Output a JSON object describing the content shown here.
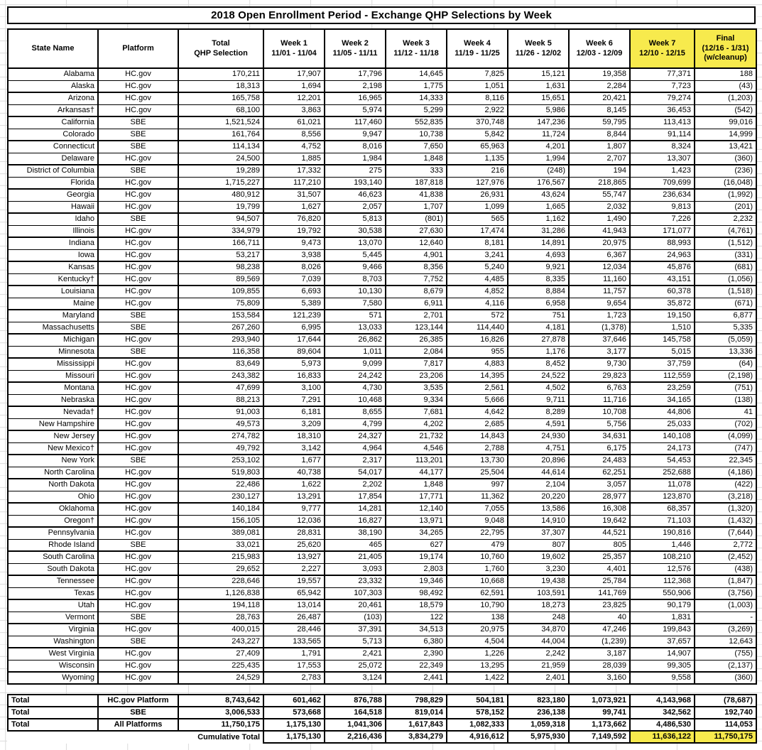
{
  "title": "2018 Open Enrollment Period - Exchange QHP Selections by Week",
  "colors": {
    "highlight_yellow": "#F7EA4D",
    "gridline": "#DCDCDC",
    "border": "#000000",
    "background": "#FFFFFF"
  },
  "columns": [
    {
      "label": "State Name",
      "sub": "",
      "highlight": false
    },
    {
      "label": "Platform",
      "sub": "",
      "highlight": false
    },
    {
      "label": "Total",
      "sub": "QHP Selection",
      "highlight": false
    },
    {
      "label": "Week 1",
      "sub": "11/01 - 11/04",
      "highlight": false
    },
    {
      "label": "Week 2",
      "sub": "11/05 - 11/11",
      "highlight": false
    },
    {
      "label": "Week 3",
      "sub": "11/12 - 11/18",
      "highlight": false
    },
    {
      "label": "Week 4",
      "sub": "11/19 - 11/25",
      "highlight": false
    },
    {
      "label": "Week 5",
      "sub": "11/26 - 12/02",
      "highlight": false
    },
    {
      "label": "Week 6",
      "sub": "12/03 - 12/09",
      "highlight": false
    },
    {
      "label": "Week 7",
      "sub": "12/10 - 12/15",
      "highlight": true
    },
    {
      "label": "Final",
      "sub": "(12/16 - 1/31)",
      "sub2": "(w/cleanup)",
      "highlight": true
    }
  ],
  "rows": [
    [
      "Alabama",
      "HC.gov",
      "170,211",
      "17,907",
      "17,796",
      "14,645",
      "7,825",
      "15,121",
      "19,358",
      "77,371",
      "188"
    ],
    [
      "Alaska",
      "HC.gov",
      "18,313",
      "1,694",
      "2,198",
      "1,775",
      "1,051",
      "1,631",
      "2,284",
      "7,723",
      "(43)"
    ],
    [
      "Arizona",
      "HC.gov",
      "165,758",
      "12,201",
      "16,965",
      "14,333",
      "8,116",
      "15,651",
      "20,421",
      "79,274",
      "(1,203)"
    ],
    [
      "Arkansas†",
      "HC.gov",
      "68,100",
      "3,863",
      "5,974",
      "5,299",
      "2,922",
      "5,986",
      "8,145",
      "36,453",
      "(542)"
    ],
    [
      "California",
      "SBE",
      "1,521,524",
      "61,021",
      "117,460",
      "552,835",
      "370,748",
      "147,236",
      "59,795",
      "113,413",
      "99,016"
    ],
    [
      "Colorado",
      "SBE",
      "161,764",
      "8,556",
      "9,947",
      "10,738",
      "5,842",
      "11,724",
      "8,844",
      "91,114",
      "14,999"
    ],
    [
      "Connecticut",
      "SBE",
      "114,134",
      "4,752",
      "8,016",
      "7,650",
      "65,963",
      "4,201",
      "1,807",
      "8,324",
      "13,421"
    ],
    [
      "Delaware",
      "HC.gov",
      "24,500",
      "1,885",
      "1,984",
      "1,848",
      "1,135",
      "1,994",
      "2,707",
      "13,307",
      "(360)"
    ],
    [
      "District of Columbia",
      "SBE",
      "19,289",
      "17,332",
      "275",
      "333",
      "216",
      "(248)",
      "194",
      "1,423",
      "(236)"
    ],
    [
      "Florida",
      "HC.gov",
      "1,715,227",
      "117,210",
      "193,140",
      "187,818",
      "127,976",
      "176,567",
      "218,865",
      "709,699",
      "(16,048)"
    ],
    [
      "Georgia",
      "HC.gov",
      "480,912",
      "31,507",
      "46,623",
      "41,838",
      "26,931",
      "43,624",
      "55,747",
      "236,634",
      "(1,992)"
    ],
    [
      "Hawaii",
      "HC.gov",
      "19,799",
      "1,627",
      "2,057",
      "1,707",
      "1,099",
      "1,665",
      "2,032",
      "9,813",
      "(201)"
    ],
    [
      "Idaho",
      "SBE",
      "94,507",
      "76,820",
      "5,813",
      "(801)",
      "565",
      "1,162",
      "1,490",
      "7,226",
      "2,232"
    ],
    [
      "Illinois",
      "HC.gov",
      "334,979",
      "19,792",
      "30,538",
      "27,630",
      "17,474",
      "31,286",
      "41,943",
      "171,077",
      "(4,761)"
    ],
    [
      "Indiana",
      "HC.gov",
      "166,711",
      "9,473",
      "13,070",
      "12,640",
      "8,181",
      "14,891",
      "20,975",
      "88,993",
      "(1,512)"
    ],
    [
      "Iowa",
      "HC.gov",
      "53,217",
      "3,938",
      "5,445",
      "4,901",
      "3,241",
      "4,693",
      "6,367",
      "24,963",
      "(331)"
    ],
    [
      "Kansas",
      "HC.gov",
      "98,238",
      "8,026",
      "9,466",
      "8,356",
      "5,240",
      "9,921",
      "12,034",
      "45,876",
      "(681)"
    ],
    [
      "Kentucky†",
      "HC.gov",
      "89,569",
      "7,039",
      "8,703",
      "7,752",
      "4,485",
      "8,335",
      "11,160",
      "43,151",
      "(1,056)"
    ],
    [
      "Louisiana",
      "HC.gov",
      "109,855",
      "6,693",
      "10,130",
      "8,679",
      "4,852",
      "8,884",
      "11,757",
      "60,378",
      "(1,518)"
    ],
    [
      "Maine",
      "HC.gov",
      "75,809",
      "5,389",
      "7,580",
      "6,911",
      "4,116",
      "6,958",
      "9,654",
      "35,872",
      "(671)"
    ],
    [
      "Maryland",
      "SBE",
      "153,584",
      "121,239",
      "571",
      "2,701",
      "572",
      "751",
      "1,723",
      "19,150",
      "6,877"
    ],
    [
      "Massachusetts",
      "SBE",
      "267,260",
      "6,995",
      "13,033",
      "123,144",
      "114,440",
      "4,181",
      "(1,378)",
      "1,510",
      "5,335"
    ],
    [
      "Michigan",
      "HC.gov",
      "293,940",
      "17,644",
      "26,862",
      "26,385",
      "16,826",
      "27,878",
      "37,646",
      "145,758",
      "(5,059)"
    ],
    [
      "Minnesota",
      "SBE",
      "116,358",
      "89,604",
      "1,011",
      "2,084",
      "955",
      "1,176",
      "3,177",
      "5,015",
      "13,336"
    ],
    [
      "Mississippi",
      "HC.gov",
      "83,649",
      "5,973",
      "9,099",
      "7,817",
      "4,883",
      "8,452",
      "9,730",
      "37,759",
      "(64)"
    ],
    [
      "Missouri",
      "HC.gov",
      "243,382",
      "16,833",
      "24,242",
      "23,206",
      "14,395",
      "24,522",
      "29,823",
      "112,559",
      "(2,198)"
    ],
    [
      "Montana",
      "HC.gov",
      "47,699",
      "3,100",
      "4,730",
      "3,535",
      "2,561",
      "4,502",
      "6,763",
      "23,259",
      "(751)"
    ],
    [
      "Nebraska",
      "HC.gov",
      "88,213",
      "7,291",
      "10,468",
      "9,334",
      "5,666",
      "9,711",
      "11,716",
      "34,165",
      "(138)"
    ],
    [
      "Nevada†",
      "HC.gov",
      "91,003",
      "6,181",
      "8,655",
      "7,681",
      "4,642",
      "8,289",
      "10,708",
      "44,806",
      "41"
    ],
    [
      "New Hampshire",
      "HC.gov",
      "49,573",
      "3,209",
      "4,799",
      "4,202",
      "2,685",
      "4,591",
      "5,756",
      "25,033",
      "(702)"
    ],
    [
      "New Jersey",
      "HC.gov",
      "274,782",
      "18,310",
      "24,327",
      "21,732",
      "14,843",
      "24,930",
      "34,631",
      "140,108",
      "(4,099)"
    ],
    [
      "New Mexico†",
      "HC.gov",
      "49,792",
      "3,142",
      "4,964",
      "4,546",
      "2,788",
      "4,751",
      "6,175",
      "24,173",
      "(747)"
    ],
    [
      "New York",
      "SBE",
      "253,102",
      "1,677",
      "2,317",
      "113,201",
      "13,730",
      "20,896",
      "24,483",
      "54,453",
      "22,345"
    ],
    [
      "North Carolina",
      "HC.gov",
      "519,803",
      "40,738",
      "54,017",
      "44,177",
      "25,504",
      "44,614",
      "62,251",
      "252,688",
      "(4,186)"
    ],
    [
      "North Dakota",
      "HC.gov",
      "22,486",
      "1,622",
      "2,202",
      "1,848",
      "997",
      "2,104",
      "3,057",
      "11,078",
      "(422)"
    ],
    [
      "Ohio",
      "HC.gov",
      "230,127",
      "13,291",
      "17,854",
      "17,771",
      "11,362",
      "20,220",
      "28,977",
      "123,870",
      "(3,218)"
    ],
    [
      "Oklahoma",
      "HC.gov",
      "140,184",
      "9,777",
      "14,281",
      "12,140",
      "7,055",
      "13,586",
      "16,308",
      "68,357",
      "(1,320)"
    ],
    [
      "Oregon†",
      "HC.gov",
      "156,105",
      "12,036",
      "16,827",
      "13,971",
      "9,048",
      "14,910",
      "19,642",
      "71,103",
      "(1,432)"
    ],
    [
      "Pennsylvania",
      "HC.gov",
      "389,081",
      "28,831",
      "38,190",
      "34,265",
      "22,795",
      "37,307",
      "44,521",
      "190,816",
      "(7,644)"
    ],
    [
      "Rhode Island",
      "SBE",
      "33,021",
      "25,620",
      "465",
      "627",
      "479",
      "807",
      "805",
      "1,446",
      "2,772"
    ],
    [
      "South Carolina",
      "HC.gov",
      "215,983",
      "13,927",
      "21,405",
      "19,174",
      "10,760",
      "19,602",
      "25,357",
      "108,210",
      "(2,452)"
    ],
    [
      "South Dakota",
      "HC.gov",
      "29,652",
      "2,227",
      "3,093",
      "2,803",
      "1,760",
      "3,230",
      "4,401",
      "12,576",
      "(438)"
    ],
    [
      "Tennessee",
      "HC.gov",
      "228,646",
      "19,557",
      "23,332",
      "19,346",
      "10,668",
      "19,438",
      "25,784",
      "112,368",
      "(1,847)"
    ],
    [
      "Texas",
      "HC.gov",
      "1,126,838",
      "65,942",
      "107,303",
      "98,492",
      "62,591",
      "103,591",
      "141,769",
      "550,906",
      "(3,756)"
    ],
    [
      "Utah",
      "HC.gov",
      "194,118",
      "13,014",
      "20,461",
      "18,579",
      "10,790",
      "18,273",
      "23,825",
      "90,179",
      "(1,003)"
    ],
    [
      "Vermont",
      "SBE",
      "28,763",
      "26,487",
      "(103)",
      "122",
      "138",
      "248",
      "40",
      "1,831",
      "-"
    ],
    [
      "Virginia",
      "HC.gov",
      "400,015",
      "28,446",
      "37,391",
      "34,513",
      "20,975",
      "34,870",
      "47,246",
      "199,843",
      "(3,269)"
    ],
    [
      "Washington",
      "SBE",
      "243,227",
      "133,565",
      "5,713",
      "6,380",
      "4,504",
      "44,004",
      "(1,239)",
      "37,657",
      "12,643"
    ],
    [
      "West Virginia",
      "HC.gov",
      "27,409",
      "1,791",
      "2,421",
      "2,390",
      "1,226",
      "2,242",
      "3,187",
      "14,907",
      "(755)"
    ],
    [
      "Wisconsin",
      "HC.gov",
      "225,435",
      "17,553",
      "25,072",
      "22,349",
      "13,295",
      "21,959",
      "28,039",
      "99,305",
      "(2,137)"
    ],
    [
      "Wyoming",
      "HC.gov",
      "24,529",
      "2,783",
      "3,124",
      "2,441",
      "1,422",
      "2,401",
      "3,160",
      "9,558",
      "(360)"
    ]
  ],
  "totals": {
    "row_label": "Total",
    "rows": [
      {
        "platform": "HC.gov Platform",
        "values": [
          "8,743,642",
          "601,462",
          "876,788",
          "798,829",
          "504,181",
          "823,180",
          "1,073,921",
          "4,143,968",
          "(78,687)"
        ]
      },
      {
        "platform": "SBE",
        "values": [
          "3,006,533",
          "573,668",
          "164,518",
          "819,014",
          "578,152",
          "236,138",
          "99,741",
          "342,562",
          "192,740"
        ]
      },
      {
        "platform": "All Platforms",
        "values": [
          "11,750,175",
          "1,175,130",
          "1,041,306",
          "1,617,843",
          "1,082,333",
          "1,059,318",
          "1,173,662",
          "4,486,530",
          "114,053"
        ]
      }
    ],
    "cumulative": {
      "label": "Cumulative Total",
      "values": [
        "1,175,130",
        "2,216,436",
        "3,834,279",
        "4,916,612",
        "5,975,930",
        "7,149,592",
        "11,636,122",
        "11,750,175"
      ],
      "highlight_last": 2
    }
  }
}
